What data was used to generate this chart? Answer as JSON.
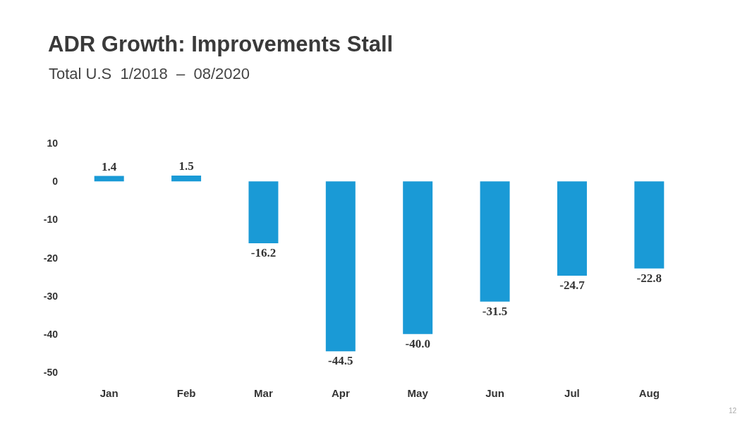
{
  "chart_data": {
    "type": "bar",
    "title": "ADR Growth: Improvements Stall",
    "subtitle": "Total U.S  1/2018  –  08/2020",
    "categories": [
      "Jan",
      "Feb",
      "Mar",
      "Apr",
      "May",
      "Jun",
      "Jul",
      "Aug"
    ],
    "values": [
      1.4,
      1.5,
      -16.2,
      -44.5,
      -40.0,
      -31.5,
      -24.7,
      -22.8
    ],
    "value_labels": [
      "1.4",
      "1.5",
      "-16.2",
      "-44.5",
      "-40.0",
      "-31.5",
      "-24.7",
      "-22.8"
    ],
    "color": "#1a9ad6",
    "ylim": [
      -50,
      10
    ],
    "yticks": [
      -50,
      -40,
      -30,
      -20,
      -10,
      0,
      10
    ],
    "annotations": [
      "12"
    ]
  }
}
